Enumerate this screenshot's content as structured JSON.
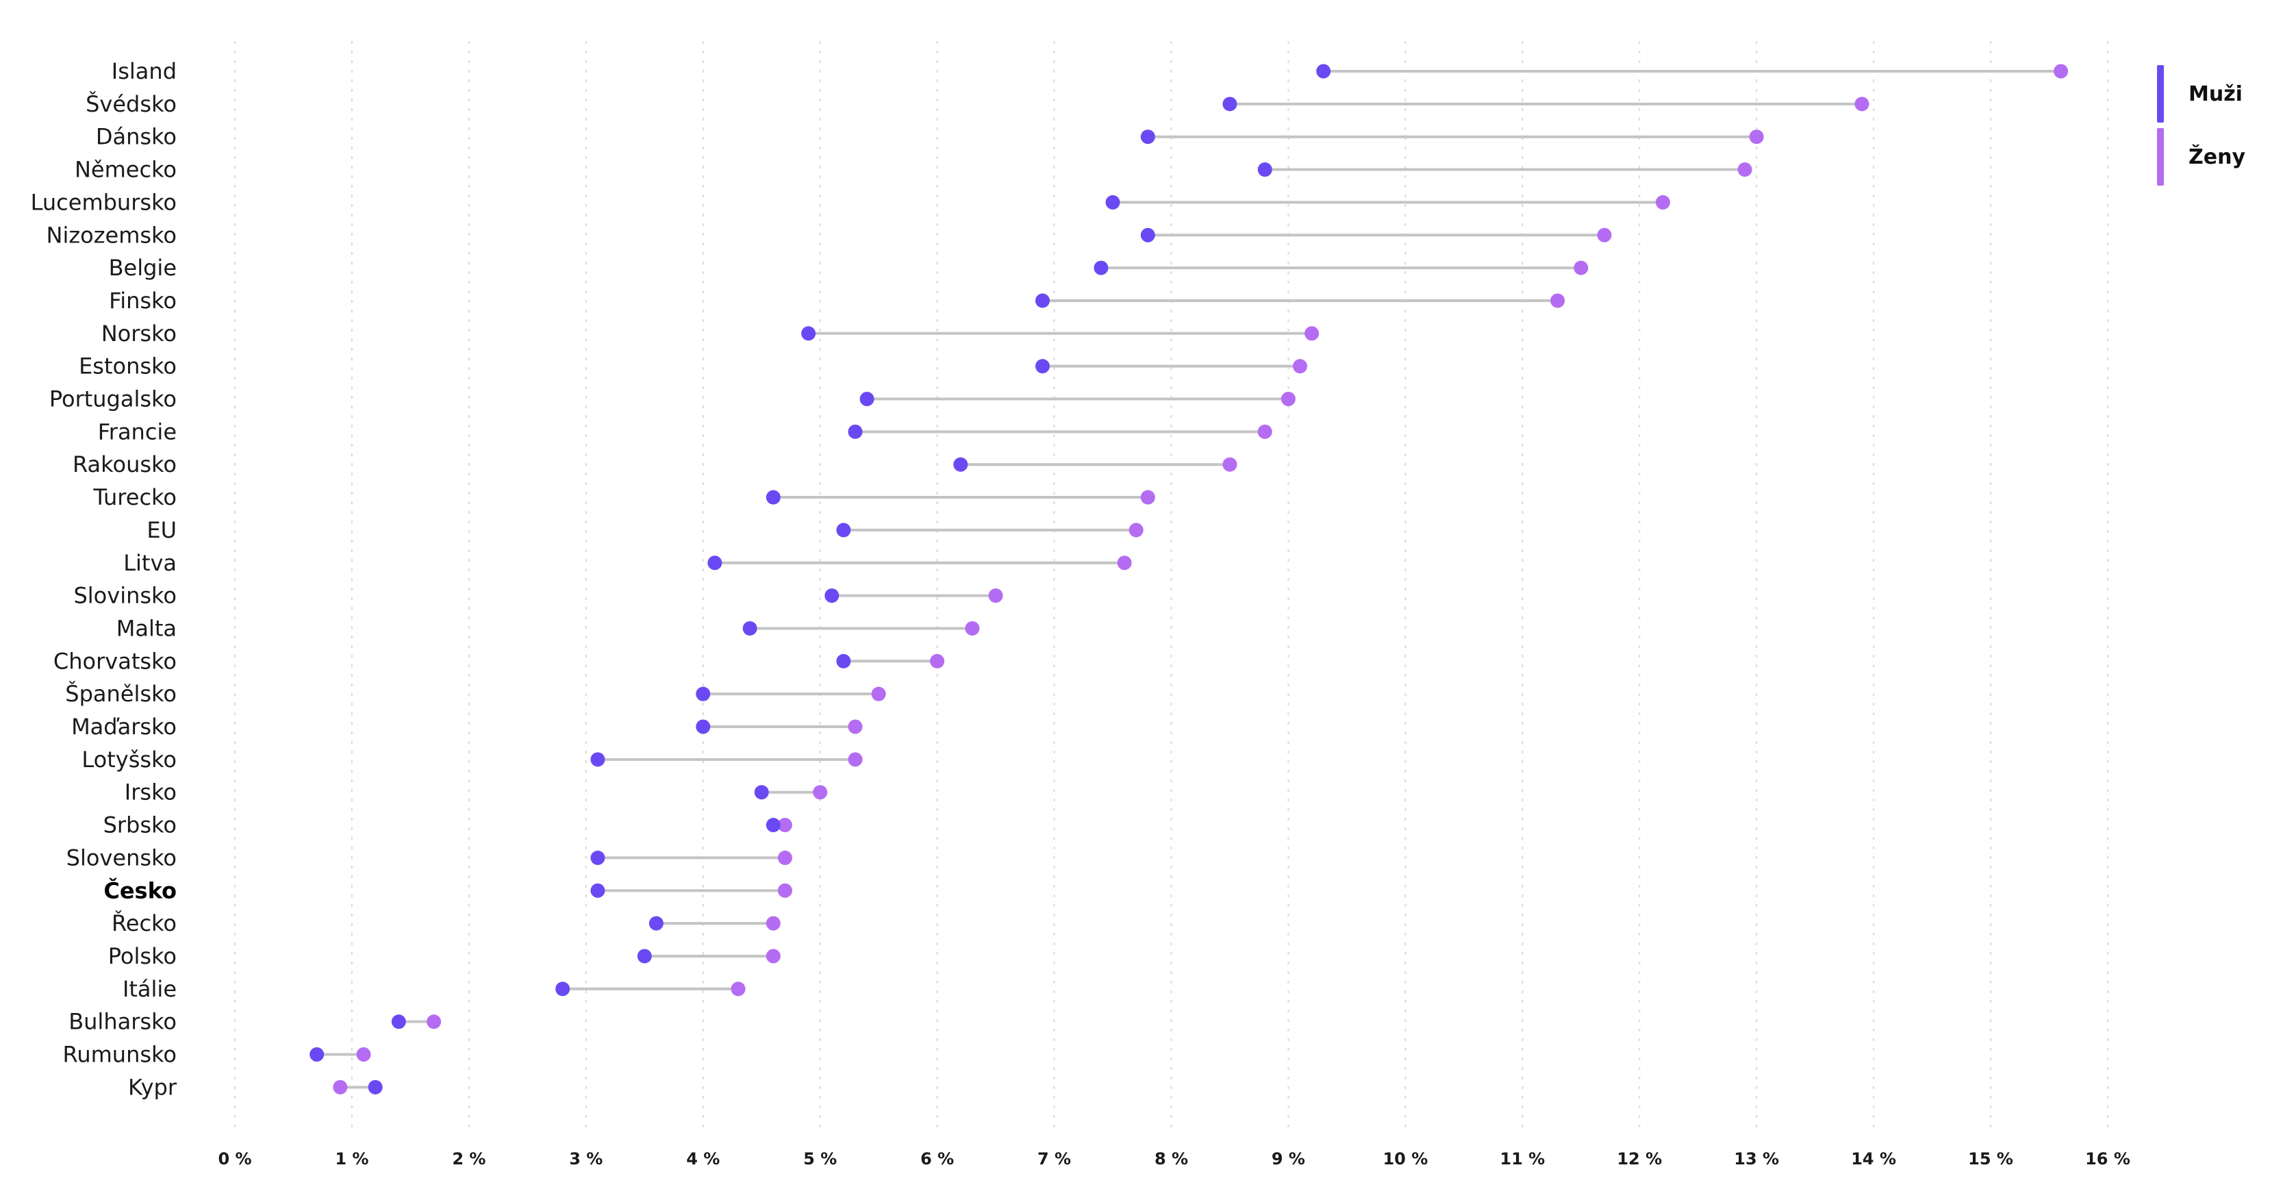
{
  "legend": {
    "muzi_label": "Muži",
    "zeny_label": "Ženy"
  },
  "colors": {
    "muzi": "#6a49f2",
    "zeny": "#b46cf2",
    "connector": "#c4c4c4",
    "grid": "#d8d8d8"
  },
  "chart_data": {
    "type": "dumbbell",
    "title": "",
    "xlabel": "",
    "ylabel": "",
    "xlim": [
      0,
      16
    ],
    "xticks": [
      "0 %",
      "1 %",
      "2 %",
      "3 %",
      "4 %",
      "5 %",
      "6 %",
      "7 %",
      "8 %",
      "9 %",
      "10 %",
      "11 %",
      "12 %",
      "13 %",
      "14 %",
      "15 %",
      "16 %"
    ],
    "grid": "vertical dotted",
    "legend_position": "top-right",
    "highlighted_category": "Česko",
    "categories": [
      "Island",
      "Švédsko",
      "Dánsko",
      "Německo",
      "Lucembursko",
      "Nizozemsko",
      "Belgie",
      "Finsko",
      "Norsko",
      "Estonsko",
      "Portugalsko",
      "Francie",
      "Rakousko",
      "Turecko",
      "EU",
      "Litva",
      "Slovinsko",
      "Malta",
      "Chorvatsko",
      "Španělsko",
      "Maďarsko",
      "Lotyšsko",
      "Irsko",
      "Srbsko",
      "Slovensko",
      "Česko",
      "Řecko",
      "Polsko",
      "Itálie",
      "Bulharsko",
      "Rumunsko",
      "Kypr"
    ],
    "series": [
      {
        "name": "Muži",
        "values": [
          9.3,
          8.5,
          7.8,
          8.8,
          7.5,
          7.8,
          7.4,
          6.9,
          4.9,
          6.9,
          5.4,
          5.3,
          6.2,
          4.6,
          5.2,
          4.1,
          5.1,
          4.4,
          5.2,
          4.0,
          4.0,
          3.1,
          4.5,
          4.6,
          3.1,
          3.1,
          3.6,
          3.5,
          2.8,
          1.4,
          0.7,
          1.2
        ]
      },
      {
        "name": "Ženy",
        "values": [
          15.6,
          13.9,
          13.0,
          12.9,
          12.2,
          11.7,
          11.5,
          11.3,
          9.2,
          9.1,
          9.0,
          8.8,
          8.5,
          7.8,
          7.7,
          7.6,
          6.5,
          6.3,
          6.0,
          5.5,
          5.3,
          5.3,
          5.0,
          4.7,
          4.7,
          4.7,
          4.6,
          4.6,
          4.3,
          1.7,
          1.1,
          0.9
        ]
      }
    ]
  }
}
